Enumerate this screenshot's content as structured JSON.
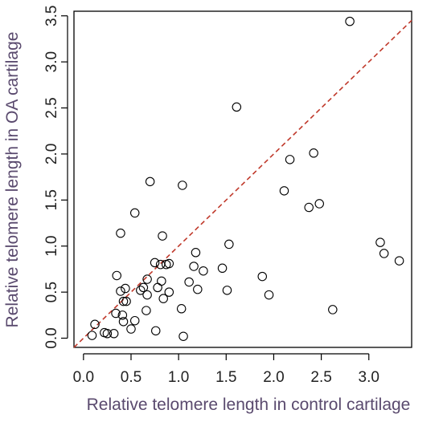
{
  "colors": {
    "axis_title": "#5a4a6e",
    "reference_line": "#c0392b",
    "points": "#000000"
  },
  "chart_data": {
    "type": "scatter",
    "title": "",
    "xlabel": "Relative telomere length in control cartilage",
    "ylabel": "Relative telomere length in OA cartilage",
    "xlim": [
      -0.1,
      3.45
    ],
    "ylim": [
      -0.1,
      3.55
    ],
    "xticks": [
      0.0,
      0.5,
      1.0,
      1.5,
      2.0,
      2.5,
      3.0
    ],
    "xtick_labels": [
      "0.0",
      "0.5",
      "1.0",
      "1.5",
      "2.0",
      "2.5",
      "3.0"
    ],
    "yticks": [
      0.0,
      0.5,
      1.0,
      1.5,
      2.0,
      2.5,
      3.0,
      3.5
    ],
    "ytick_labels": [
      "0.0",
      "0.5",
      "1.0",
      "1.5",
      "2.0",
      "2.5",
      "3.0",
      "3.5"
    ],
    "grid": false,
    "legend": "none",
    "reference_line": {
      "style": "dashed",
      "x": [
        -0.1,
        3.45
      ],
      "y": [
        -0.1,
        3.45
      ]
    },
    "points": [
      {
        "x": 0.09,
        "y": 0.03
      },
      {
        "x": 0.12,
        "y": 0.15
      },
      {
        "x": 0.22,
        "y": 0.06
      },
      {
        "x": 0.25,
        "y": 0.05
      },
      {
        "x": 0.32,
        "y": 0.05
      },
      {
        "x": 0.34,
        "y": 0.27
      },
      {
        "x": 0.35,
        "y": 0.68
      },
      {
        "x": 0.39,
        "y": 0.51
      },
      {
        "x": 0.39,
        "y": 1.14
      },
      {
        "x": 0.41,
        "y": 0.25
      },
      {
        "x": 0.42,
        "y": 0.4
      },
      {
        "x": 0.42,
        "y": 0.18
      },
      {
        "x": 0.44,
        "y": 0.54
      },
      {
        "x": 0.45,
        "y": 0.4
      },
      {
        "x": 0.5,
        "y": 0.1
      },
      {
        "x": 0.54,
        "y": 0.19
      },
      {
        "x": 0.54,
        "y": 1.36
      },
      {
        "x": 0.6,
        "y": 0.52
      },
      {
        "x": 0.63,
        "y": 0.55
      },
      {
        "x": 0.66,
        "y": 0.3
      },
      {
        "x": 0.67,
        "y": 0.64
      },
      {
        "x": 0.67,
        "y": 0.47
      },
      {
        "x": 0.7,
        "y": 1.7
      },
      {
        "x": 0.75,
        "y": 0.82
      },
      {
        "x": 0.76,
        "y": 0.08
      },
      {
        "x": 0.78,
        "y": 0.55
      },
      {
        "x": 0.81,
        "y": 0.8
      },
      {
        "x": 0.82,
        "y": 0.62
      },
      {
        "x": 0.83,
        "y": 1.11
      },
      {
        "x": 0.84,
        "y": 0.43
      },
      {
        "x": 0.87,
        "y": 0.8
      },
      {
        "x": 0.9,
        "y": 0.81
      },
      {
        "x": 0.9,
        "y": 0.5
      },
      {
        "x": 1.03,
        "y": 0.32
      },
      {
        "x": 1.04,
        "y": 1.66
      },
      {
        "x": 1.05,
        "y": 0.02
      },
      {
        "x": 1.11,
        "y": 0.61
      },
      {
        "x": 1.16,
        "y": 0.78
      },
      {
        "x": 1.18,
        "y": 0.93
      },
      {
        "x": 1.2,
        "y": 0.53
      },
      {
        "x": 1.26,
        "y": 0.73
      },
      {
        "x": 1.46,
        "y": 0.76
      },
      {
        "x": 1.51,
        "y": 0.52
      },
      {
        "x": 1.53,
        "y": 1.02
      },
      {
        "x": 1.61,
        "y": 2.51
      },
      {
        "x": 1.88,
        "y": 0.67
      },
      {
        "x": 1.95,
        "y": 0.47
      },
      {
        "x": 2.11,
        "y": 1.6
      },
      {
        "x": 2.17,
        "y": 1.94
      },
      {
        "x": 2.37,
        "y": 1.42
      },
      {
        "x": 2.42,
        "y": 2.01
      },
      {
        "x": 2.48,
        "y": 1.46
      },
      {
        "x": 2.62,
        "y": 0.31
      },
      {
        "x": 2.8,
        "y": 3.44
      },
      {
        "x": 3.12,
        "y": 1.04
      },
      {
        "x": 3.16,
        "y": 0.92
      },
      {
        "x": 3.32,
        "y": 0.84
      }
    ]
  }
}
